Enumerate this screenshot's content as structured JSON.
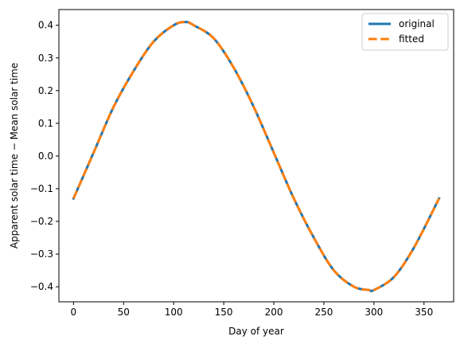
{
  "chart_data": {
    "type": "line",
    "xlabel": "Day of year",
    "ylabel": "Apparent solar time − Mean solar time",
    "xlim": [
      -14.6,
      379.6
    ],
    "ylim": [
      -0.446,
      0.448
    ],
    "xticks": [
      0,
      50,
      100,
      150,
      200,
      250,
      300,
      350
    ],
    "yticks": [
      -0.4,
      -0.3,
      -0.2,
      -0.1,
      0.0,
      0.1,
      0.2,
      0.3,
      0.4
    ],
    "xtick_labels": [
      "0",
      "50",
      "100",
      "150",
      "200",
      "250",
      "300",
      "350"
    ],
    "ytick_labels": [
      "−0.4",
      "−0.3",
      "−0.2",
      "−0.1",
      "0.0",
      "0.1",
      "0.2",
      "0.3",
      "0.4"
    ],
    "grid": false,
    "legend_position": "top-right",
    "series": [
      {
        "name": "original",
        "color": "#1f77b4",
        "line_style": "solid",
        "x": [
          0,
          20,
          40,
          60,
          80,
          100,
          112,
          120,
          140,
          160,
          180,
          200,
          220,
          240,
          260,
          280,
          295,
          300,
          320,
          340,
          365
        ],
        "y": [
          -0.13,
          0.01,
          0.15,
          0.26,
          0.35,
          0.4,
          0.41,
          0.4,
          0.36,
          0.27,
          0.15,
          0.01,
          -0.13,
          -0.25,
          -0.35,
          -0.4,
          -0.41,
          -0.41,
          -0.37,
          -0.28,
          -0.13
        ]
      },
      {
        "name": "fitted",
        "color": "#ff7f0e",
        "line_style": "dashed",
        "x": [
          0,
          20,
          40,
          60,
          80,
          100,
          112,
          120,
          140,
          160,
          180,
          200,
          220,
          240,
          260,
          280,
          295,
          300,
          320,
          340,
          365
        ],
        "y": [
          -0.13,
          0.01,
          0.15,
          0.26,
          0.35,
          0.4,
          0.41,
          0.4,
          0.36,
          0.27,
          0.15,
          0.01,
          -0.13,
          -0.25,
          -0.35,
          -0.4,
          -0.41,
          -0.41,
          -0.37,
          -0.28,
          -0.13
        ]
      }
    ]
  }
}
